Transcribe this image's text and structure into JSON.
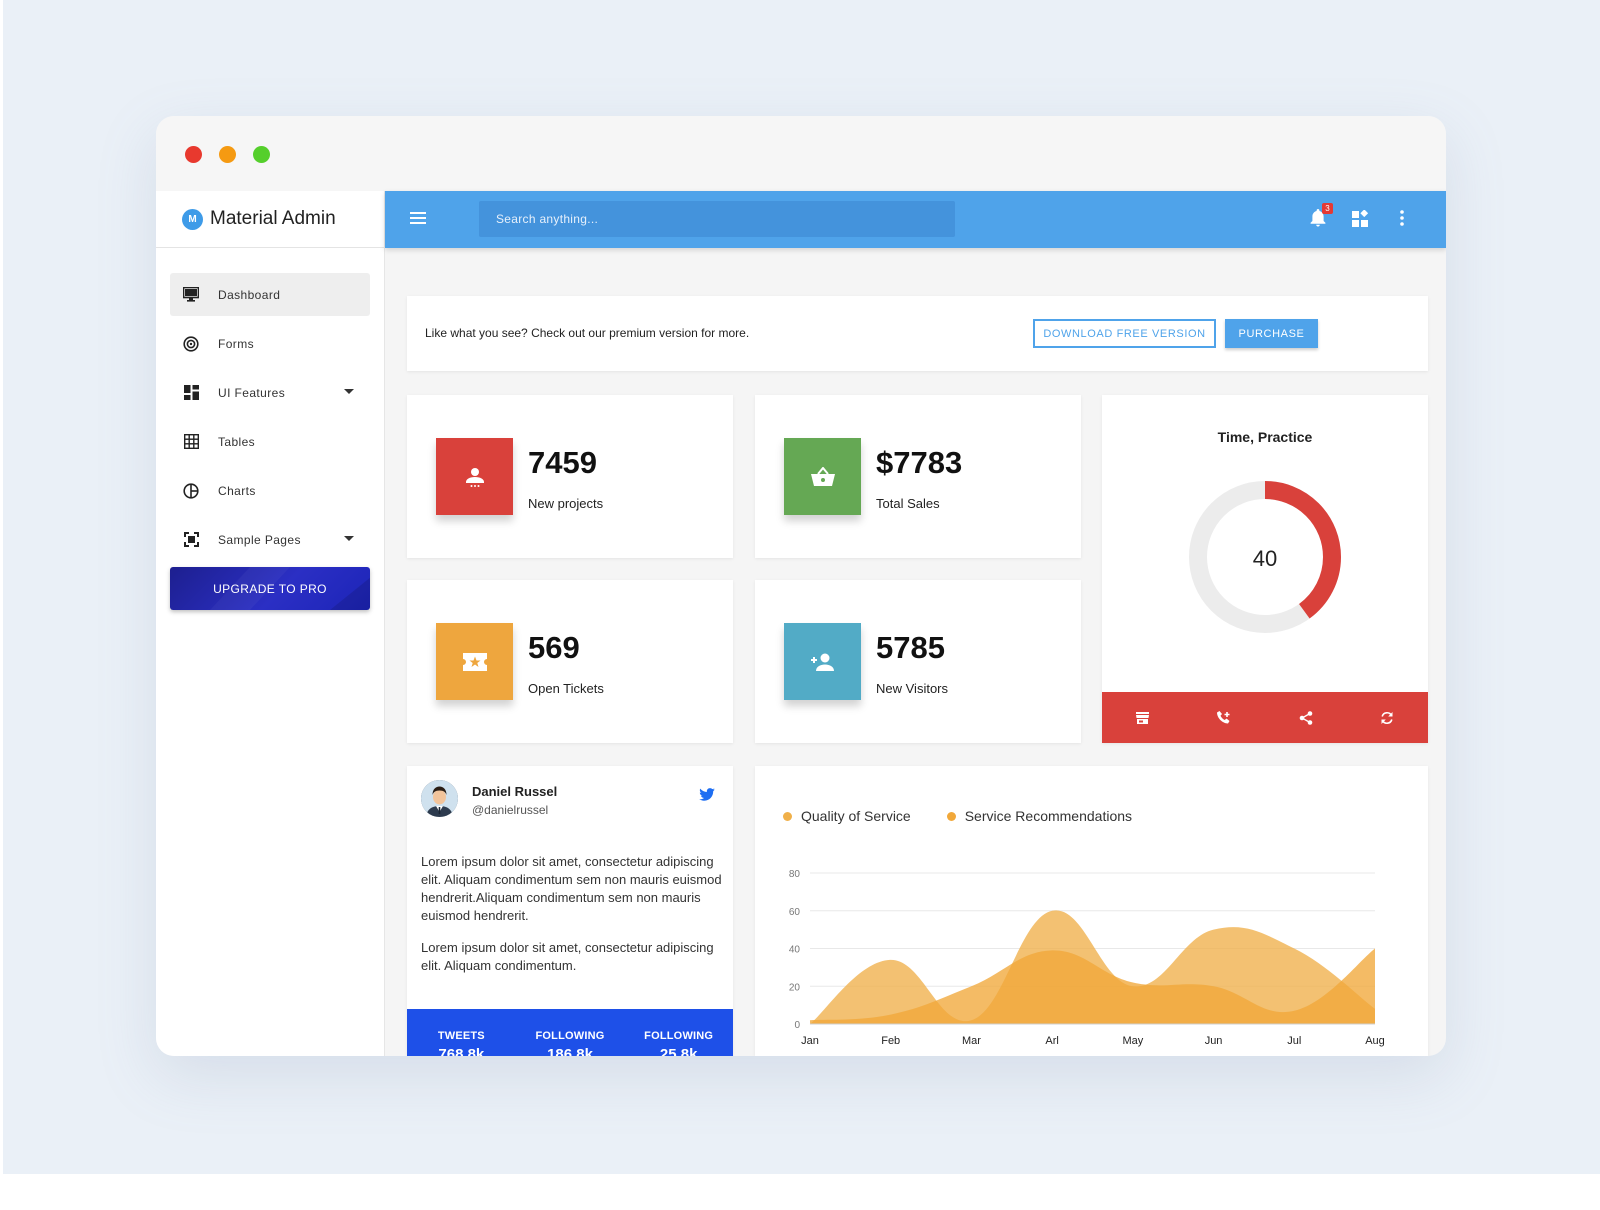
{
  "brand": {
    "logo_letter": "M",
    "name": "Material Admin"
  },
  "sidebar": {
    "items": [
      {
        "label": "Dashboard",
        "icon": "monitor-icon",
        "active": true
      },
      {
        "label": "Forms",
        "icon": "target-icon"
      },
      {
        "label": "UI Features",
        "icon": "dashboard-grid-icon",
        "expandable": true
      },
      {
        "label": "Tables",
        "icon": "table-grid-icon"
      },
      {
        "label": "Charts",
        "icon": "pie-chart-icon"
      },
      {
        "label": "Sample Pages",
        "icon": "crop-frame-icon",
        "expandable": true
      }
    ],
    "upgrade_label": "UPGRADE TO PRO"
  },
  "topbar": {
    "search_placeholder": "Search anything...",
    "notification_count": "3",
    "icons": [
      "menu-icon",
      "bell-icon",
      "widgets-icon",
      "more-vertical-icon"
    ]
  },
  "promo": {
    "text": "Like what you see? Check out our premium version for more.",
    "download_label": "DOWNLOAD FREE VERSION",
    "purchase_label": "PURCHASE"
  },
  "stats": [
    {
      "value": "7459",
      "label": "New projects",
      "color": "#d9413b",
      "icon": "person-icon"
    },
    {
      "value": "$7783",
      "label": "Total Sales",
      "color": "#65a854",
      "icon": "basket-icon"
    },
    {
      "value": "569",
      "label": "Open Tickets",
      "color": "#eea63e",
      "icon": "ticket-icon"
    },
    {
      "value": "5785",
      "label": "New Visitors",
      "color": "#52abc6",
      "icon": "person-add-icon"
    }
  ],
  "donut": {
    "title": "Time, Practice",
    "value": "40",
    "percent": 40,
    "color": "#d9413b",
    "track_color": "#ececec",
    "footer_icons": [
      "store-icon",
      "phone-add-icon",
      "share-icon",
      "refresh-icon"
    ]
  },
  "tweet": {
    "name": "Daniel Russel",
    "handle": "@danielrussel",
    "paragraphs": [
      "Lorem ipsum dolor sit amet, consectetur adipiscing elit. Aliquam condimentum sem non mauris euismod hendrerit.Aliquam condimentum sem non mauris euismod hendrerit.",
      "Lorem ipsum dolor sit amet, consectetur adipiscing elit. Aliquam condimentum."
    ],
    "stats": [
      {
        "label": "TWEETS",
        "value": "768.8k"
      },
      {
        "label": "FOLLOWING",
        "value": "186.8k"
      },
      {
        "label": "FOLLOWING",
        "value": "25.8k"
      }
    ]
  },
  "chart_data": {
    "type": "area",
    "categories": [
      "Jan",
      "Feb",
      "Mar",
      "Arl",
      "May",
      "Jun",
      "Jul",
      "Aug"
    ],
    "ylim": [
      0,
      80
    ],
    "yticks": [
      0,
      20,
      40,
      60,
      80
    ],
    "grid": true,
    "legend_position": "top-left",
    "series": [
      {
        "name": "Quality of Service",
        "color": "#f0b04a",
        "values": [
          0,
          34,
          2,
          60,
          20,
          50,
          40,
          8
        ]
      },
      {
        "name": "Service Recommendations",
        "color": "#f1a83a",
        "values": [
          2,
          5,
          20,
          39,
          22,
          20,
          7,
          40
        ]
      }
    ]
  }
}
